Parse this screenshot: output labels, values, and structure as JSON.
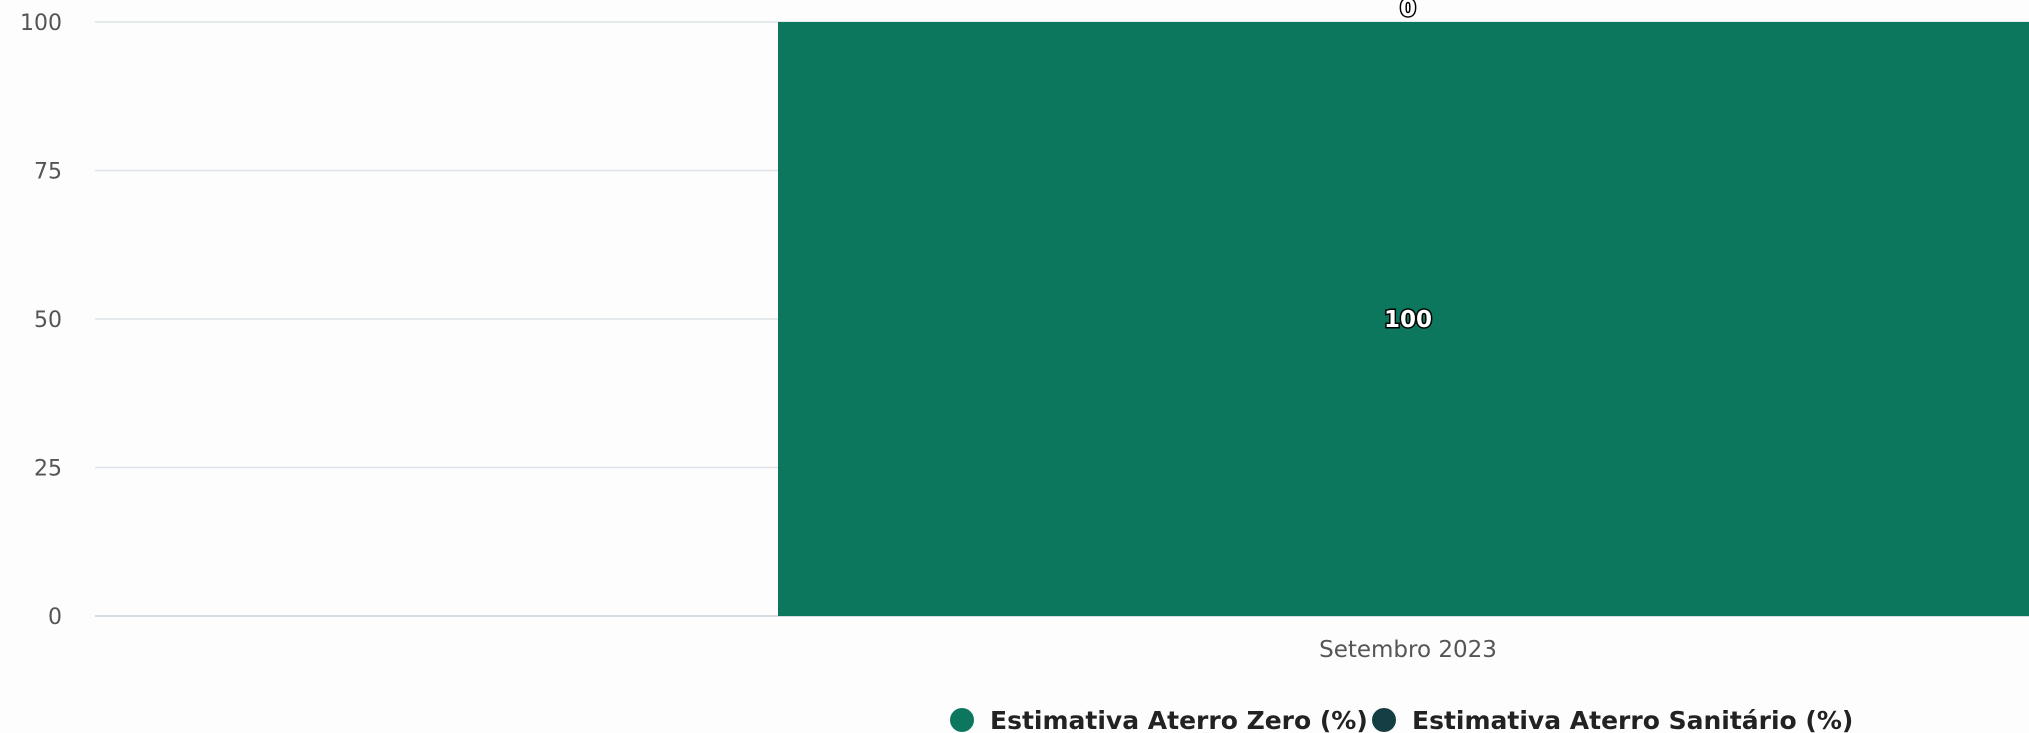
{
  "chart_data": {
    "type": "bar",
    "stacked": true,
    "categories": [
      "Setembro 2023"
    ],
    "series": [
      {
        "name": "Estimativa Aterro Zero (%)",
        "values": [
          100
        ],
        "color": "#0d775d"
      },
      {
        "name": "Estimativa Aterro Sanitário (%)",
        "values": [
          0
        ],
        "color": "#143d44"
      }
    ],
    "title": "",
    "xlabel": "",
    "ylabel": "",
    "ylim": [
      0,
      100
    ],
    "yticks": [
      0,
      25,
      50,
      75,
      100
    ],
    "grid": true,
    "legend": "bottom-center"
  },
  "colors": {
    "grid": "#dde3e8",
    "axis": "#c9d3dc",
    "background": "#fdfdfd"
  }
}
